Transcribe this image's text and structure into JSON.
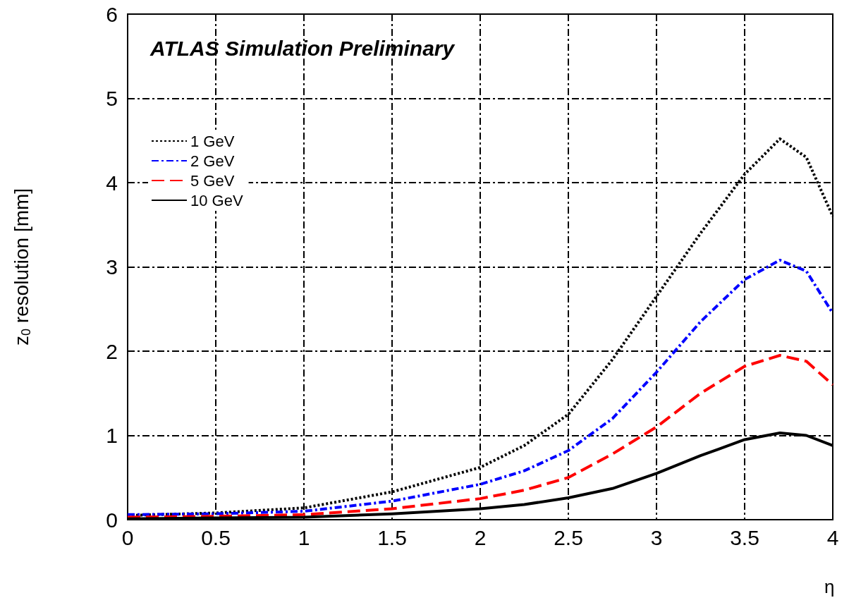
{
  "chart_data": {
    "type": "line",
    "title": "ATLAS Simulation Preliminary",
    "xlabel": "η",
    "ylabel": "z$_{0}$ resolution [mm]",
    "xlim": [
      0,
      4
    ],
    "ylim": [
      0,
      6
    ],
    "xticks": [
      0,
      0.5,
      1,
      1.5,
      2,
      2.5,
      3,
      3.5,
      4
    ],
    "yticks": [
      0,
      1,
      2,
      3,
      4,
      5,
      6
    ],
    "grid": true,
    "legend": "top left",
    "marker": "none",
    "x": [
      0,
      0.5,
      1,
      1.5,
      2,
      2.25,
      2.5,
      2.75,
      3,
      3.25,
      3.5,
      3.7,
      3.85,
      4
    ],
    "series": [
      {
        "name": "1 GeV",
        "color": "#000000",
        "line_style": "dotted",
        "values": [
          0.05,
          0.08,
          0.14,
          0.33,
          0.62,
          0.88,
          1.25,
          1.9,
          2.65,
          3.4,
          4.1,
          4.52,
          4.3,
          3.6
        ]
      },
      {
        "name": "2 GeV",
        "color": "#0000ff",
        "line_style": "dashdot",
        "values": [
          0.06,
          0.07,
          0.1,
          0.22,
          0.42,
          0.58,
          0.82,
          1.2,
          1.75,
          2.35,
          2.85,
          3.08,
          2.95,
          2.45
        ]
      },
      {
        "name": "5 GeV",
        "color": "#ff0000",
        "line_style": "dashed",
        "values": [
          0.03,
          0.04,
          0.06,
          0.13,
          0.25,
          0.35,
          0.5,
          0.78,
          1.1,
          1.5,
          1.82,
          1.95,
          1.88,
          1.6
        ]
      },
      {
        "name": "10 GeV",
        "color": "#000000",
        "line_style": "solid",
        "values": [
          0.01,
          0.02,
          0.03,
          0.07,
          0.13,
          0.18,
          0.26,
          0.37,
          0.55,
          0.76,
          0.95,
          1.03,
          1.0,
          0.88
        ]
      }
    ]
  }
}
